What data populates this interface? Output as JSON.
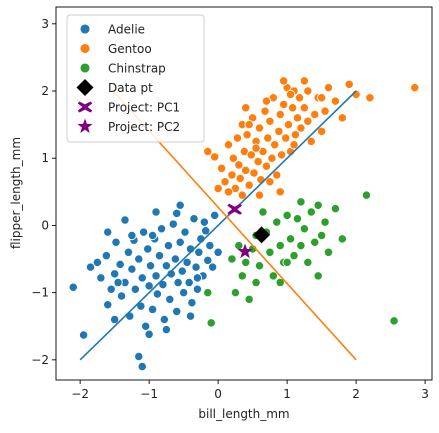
{
  "chart_data": {
    "type": "scatter",
    "xlabel": "bill_length_mm",
    "ylabel": "flipper_length_mm",
    "xlim": [
      -2.35,
      3.1
    ],
    "ylim": [
      -2.3,
      3.25
    ],
    "xticks": [
      -2,
      -1,
      0,
      1,
      2,
      3
    ],
    "yticks": [
      -2,
      -1,
      0,
      1,
      2,
      3
    ],
    "grid": false,
    "legend_position": "top-left",
    "legend": [
      {
        "label": "Adelie",
        "marker": "circle",
        "color": "#1f77b4"
      },
      {
        "label": "Gentoo",
        "marker": "circle",
        "color": "#ff7f0e"
      },
      {
        "label": "Chinstrap",
        "marker": "circle",
        "color": "#2ca02c"
      },
      {
        "label": "Data pt",
        "marker": "diamond",
        "color": "#000000"
      },
      {
        "label": "Project: PC1",
        "marker": "x-thick",
        "color": "#800080"
      },
      {
        "label": "Project: PC2",
        "marker": "star",
        "color": "#800080"
      }
    ],
    "series": [
      {
        "name": "Adelie",
        "color": "#1f77b4",
        "points": [
          [
            -2.1,
            -0.92
          ],
          [
            -1.95,
            -1.63
          ],
          [
            -1.85,
            -0.62
          ],
          [
            -1.75,
            -0.55
          ],
          [
            -1.7,
            -0.78
          ],
          [
            -1.62,
            -0.45
          ],
          [
            -1.6,
            -1.18
          ],
          [
            -1.55,
            -0.95
          ],
          [
            -1.5,
            -0.72
          ],
          [
            -1.48,
            -0.25
          ],
          [
            -1.42,
            -0.58
          ],
          [
            -1.4,
            -1.05
          ],
          [
            -1.35,
            -0.85
          ],
          [
            -1.3,
            -0.4
          ],
          [
            -1.28,
            -1.35
          ],
          [
            -1.25,
            -0.65
          ],
          [
            -1.22,
            -0.22
          ],
          [
            -1.2,
            -0.95
          ],
          [
            -1.15,
            -0.5
          ],
          [
            -1.12,
            -1.2
          ],
          [
            -1.1,
            -0.78
          ],
          [
            -1.08,
            -0.1
          ],
          [
            -1.05,
            -1.5
          ],
          [
            -1.02,
            -0.35
          ],
          [
            -1.0,
            -0.9
          ],
          [
            -0.98,
            -0.6
          ],
          [
            -0.95,
            -1.25
          ],
          [
            -0.92,
            -0.2
          ],
          [
            -0.9,
            -0.75
          ],
          [
            -0.88,
            -1.02
          ],
          [
            -0.85,
            -0.45
          ],
          [
            -0.82,
            -0.05
          ],
          [
            -0.8,
            -0.88
          ],
          [
            -0.78,
            -1.4
          ],
          [
            -0.75,
            -0.6
          ],
          [
            -0.72,
            -0.3
          ],
          [
            -0.7,
            -1.1
          ],
          [
            -0.68,
            -0.72
          ],
          [
            -0.65,
            0.02
          ],
          [
            -0.62,
            -0.5
          ],
          [
            -0.6,
            -1.28
          ],
          [
            -0.58,
            -0.85
          ],
          [
            -0.55,
            -0.25
          ],
          [
            -0.52,
            -0.68
          ],
          [
            -0.5,
            -1.0
          ],
          [
            -0.48,
            -0.1
          ],
          [
            -0.45,
            -0.55
          ],
          [
            -0.42,
            -0.85
          ],
          [
            -0.4,
            -0.35
          ],
          [
            -0.38,
            -1.15
          ],
          [
            -0.35,
            0.1
          ],
          [
            -0.32,
            -0.62
          ],
          [
            -0.3,
            -0.95
          ],
          [
            -0.28,
            -0.4
          ],
          [
            -0.25,
            -0.2
          ],
          [
            -0.22,
            -0.75
          ],
          [
            -0.2,
            0.05
          ],
          [
            -0.15,
            -0.52
          ],
          [
            -0.12,
            -0.3
          ],
          [
            -0.08,
            -0.62
          ],
          [
            -0.05,
            0.15
          ],
          [
            0.0,
            -0.4
          ],
          [
            -1.15,
            -1.95
          ],
          [
            -1.1,
            -2.1
          ],
          [
            -1.5,
            -1.4
          ],
          [
            -1.35,
            0.08
          ],
          [
            -1.6,
            -0.1
          ],
          [
            -1.0,
            -1.62
          ],
          [
            -0.9,
            0.2
          ],
          [
            -0.55,
            0.3
          ],
          [
            -0.4,
            -1.35
          ],
          [
            -0.6,
            0.18
          ],
          [
            -1.45,
            -0.85
          ],
          [
            -1.25,
            -0.15
          ],
          [
            -0.95,
            -0.15
          ],
          [
            -0.75,
            -1.55
          ],
          [
            -0.3,
            -0.78
          ],
          [
            -0.18,
            -0.08
          ]
        ]
      },
      {
        "name": "Gentoo",
        "color": "#ff7f0e",
        "points": [
          [
            0.0,
            0.55
          ],
          [
            -0.05,
            1.02
          ],
          [
            0.05,
            0.85
          ],
          [
            0.1,
            0.65
          ],
          [
            0.15,
            1.2
          ],
          [
            0.2,
            0.75
          ],
          [
            0.22,
            1.0
          ],
          [
            0.25,
            0.55
          ],
          [
            0.28,
            1.3
          ],
          [
            0.3,
            0.9
          ],
          [
            0.32,
            0.7
          ],
          [
            0.35,
            1.5
          ],
          [
            0.38,
            1.1
          ],
          [
            0.4,
            0.82
          ],
          [
            0.42,
            1.35
          ],
          [
            0.45,
            0.6
          ],
          [
            0.48,
            1.05
          ],
          [
            0.5,
            1.6
          ],
          [
            0.52,
            0.78
          ],
          [
            0.55,
            1.25
          ],
          [
            0.58,
            0.95
          ],
          [
            0.6,
            1.45
          ],
          [
            0.62,
            0.68
          ],
          [
            0.65,
            1.1
          ],
          [
            0.68,
            1.7
          ],
          [
            0.7,
            0.88
          ],
          [
            0.72,
            1.3
          ],
          [
            0.75,
            1.55
          ],
          [
            0.78,
            1.0
          ],
          [
            0.8,
            1.9
          ],
          [
            0.82,
            1.2
          ],
          [
            0.85,
            0.75
          ],
          [
            0.88,
            1.4
          ],
          [
            0.9,
            1.65
          ],
          [
            0.92,
            1.05
          ],
          [
            0.95,
            1.8
          ],
          [
            0.98,
            1.3
          ],
          [
            1.0,
            2.05
          ],
          [
            1.02,
            1.5
          ],
          [
            1.05,
            1.1
          ],
          [
            1.08,
            1.75
          ],
          [
            1.1,
            2.0
          ],
          [
            1.12,
            1.35
          ],
          [
            1.15,
            1.6
          ],
          [
            1.18,
            1.9
          ],
          [
            1.2,
            1.45
          ],
          [
            1.25,
            1.75
          ],
          [
            1.3,
            2.0
          ],
          [
            1.35,
            1.25
          ],
          [
            1.4,
            1.65
          ],
          [
            1.45,
            1.9
          ],
          [
            1.5,
            1.4
          ],
          [
            1.55,
            1.7
          ],
          [
            1.6,
            2.05
          ],
          [
            1.7,
            1.85
          ],
          [
            1.8,
            1.6
          ],
          [
            1.9,
            2.1
          ],
          [
            2.0,
            1.95
          ],
          [
            2.2,
            1.9
          ],
          [
            2.85,
            2.05
          ],
          [
            0.9,
            0.5
          ],
          [
            0.7,
            1.85
          ],
          [
            1.25,
            2.15
          ],
          [
            0.95,
            2.15
          ],
          [
            -0.15,
            1.1
          ],
          [
            0.4,
            1.75
          ],
          [
            0.6,
            0.45
          ],
          [
            1.1,
            1.2
          ],
          [
            0.15,
            0.5
          ],
          [
            0.35,
            0.45
          ],
          [
            1.5,
            1.9
          ],
          [
            0.55,
            1.15
          ],
          [
            0.75,
            0.65
          ],
          [
            1.05,
            1.95
          ],
          [
            1.3,
            1.55
          ],
          [
            0.45,
            1.5
          ]
        ]
      },
      {
        "name": "Chinstrap",
        "color": "#2ca02c",
        "points": [
          [
            -0.15,
            -1.0
          ],
          [
            -0.1,
            -1.45
          ],
          [
            0.2,
            -0.5
          ],
          [
            0.25,
            -1.0
          ],
          [
            0.3,
            -0.3
          ],
          [
            0.35,
            -0.75
          ],
          [
            0.4,
            -0.55
          ],
          [
            0.45,
            -1.1
          ],
          [
            0.5,
            -0.35
          ],
          [
            0.55,
            -0.85
          ],
          [
            0.6,
            -0.6
          ],
          [
            0.7,
            -0.1
          ],
          [
            0.75,
            -0.4
          ],
          [
            0.8,
            -0.75
          ],
          [
            0.85,
            0.05
          ],
          [
            0.9,
            -0.3
          ],
          [
            0.95,
            -0.55
          ],
          [
            1.0,
            0.15
          ],
          [
            1.05,
            -0.2
          ],
          [
            1.1,
            -0.45
          ],
          [
            1.15,
            0.1
          ],
          [
            1.2,
            -0.3
          ],
          [
            1.25,
            -0.05
          ],
          [
            1.3,
            -0.55
          ],
          [
            1.35,
            0.2
          ],
          [
            1.4,
            -0.25
          ],
          [
            1.45,
            -0.75
          ],
          [
            1.5,
            -0.15
          ],
          [
            1.55,
            0.05
          ],
          [
            1.6,
            -0.4
          ],
          [
            1.7,
            0.25
          ],
          [
            1.8,
            -0.2
          ],
          [
            2.15,
            0.45
          ],
          [
            2.55,
            -1.42
          ],
          [
            0.65,
            0.2
          ],
          [
            0.9,
            -0.85
          ],
          [
            1.2,
            0.35
          ],
          [
            1.45,
            0.3
          ],
          [
            0.55,
            -0.15
          ],
          [
            1.0,
            -0.55
          ]
        ]
      }
    ],
    "lines": [
      {
        "color": "#1f77b4",
        "points": [
          [
            -2.0,
            -2.0
          ],
          [
            2.0,
            2.0
          ]
        ]
      },
      {
        "color": "#ff7f0e",
        "points": [
          [
            -1.55,
            2.03
          ],
          [
            2.0,
            -2.0
          ]
        ]
      }
    ],
    "special_points": [
      {
        "name": "Data pt",
        "marker": "diamond",
        "color": "#000000",
        "x": 0.63,
        "y": -0.14
      },
      {
        "name": "Project: PC1",
        "marker": "x-thick",
        "color": "#800080",
        "x": 0.24,
        "y": 0.24
      },
      {
        "name": "Project: PC2",
        "marker": "star",
        "color": "#800080",
        "x": 0.39,
        "y": -0.39
      }
    ]
  }
}
